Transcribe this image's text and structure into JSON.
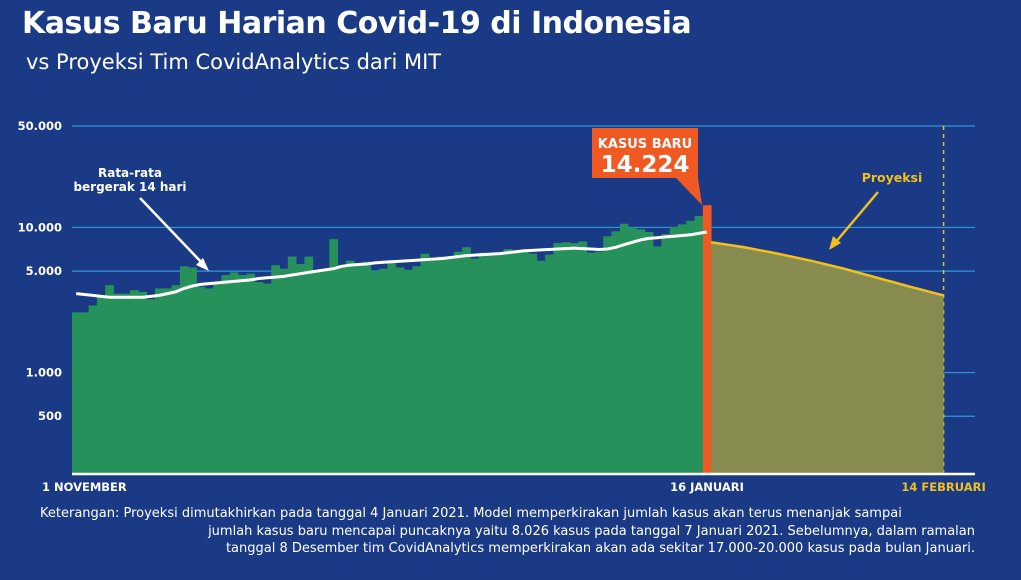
{
  "header": {
    "title": "Kasus Baru Harian Covid-19 di Indonesia",
    "subtitle": "vs Proyeksi Tim CovidAnalytics dari MIT"
  },
  "colors": {
    "background": "#1b3a86",
    "bars": "#26915a",
    "moving_average": "#ffffff",
    "highlight": "#f05a22",
    "projection_fill": "#8e8f4d",
    "projection_line": "#f2c01e",
    "gridline": "#2b9ad8"
  },
  "chart_data": {
    "type": "bar",
    "scale": "log",
    "ylim": [
      200,
      50000
    ],
    "y_ticks": [
      500,
      1000,
      5000,
      10000,
      50000
    ],
    "y_tick_labels": [
      "500",
      "1.000",
      "5.000",
      "10.000",
      "50.000"
    ],
    "x_ticks": [
      "2020-11-01",
      "2021-01-16",
      "2021-02-14"
    ],
    "x_tick_labels": [
      "1 NOVEMBER",
      "16 JANUARI",
      "14 FEBRUARI"
    ],
    "x": [
      "2020-11-01",
      "2020-11-02",
      "2020-11-03",
      "2020-11-04",
      "2020-11-05",
      "2020-11-06",
      "2020-11-07",
      "2020-11-08",
      "2020-11-09",
      "2020-11-10",
      "2020-11-11",
      "2020-11-12",
      "2020-11-13",
      "2020-11-14",
      "2020-11-15",
      "2020-11-16",
      "2020-11-17",
      "2020-11-18",
      "2020-11-19",
      "2020-11-20",
      "2020-11-21",
      "2020-11-22",
      "2020-11-23",
      "2020-11-24",
      "2020-11-25",
      "2020-11-26",
      "2020-11-27",
      "2020-11-28",
      "2020-11-29",
      "2020-11-30",
      "2020-12-01",
      "2020-12-02",
      "2020-12-03",
      "2020-12-04",
      "2020-12-05",
      "2020-12-06",
      "2020-12-07",
      "2020-12-08",
      "2020-12-09",
      "2020-12-10",
      "2020-12-11",
      "2020-12-12",
      "2020-12-13",
      "2020-12-14",
      "2020-12-15",
      "2020-12-16",
      "2020-12-17",
      "2020-12-18",
      "2020-12-19",
      "2020-12-20",
      "2020-12-21",
      "2020-12-22",
      "2020-12-23",
      "2020-12-24",
      "2020-12-25",
      "2020-12-26",
      "2020-12-27",
      "2020-12-28",
      "2020-12-29",
      "2020-12-30",
      "2020-12-31",
      "2021-01-01",
      "2021-01-02",
      "2021-01-03",
      "2021-01-04",
      "2021-01-05",
      "2021-01-06",
      "2021-01-07",
      "2021-01-08",
      "2021-01-09",
      "2021-01-10",
      "2021-01-11",
      "2021-01-12",
      "2021-01-13",
      "2021-01-14",
      "2021-01-15",
      "2021-01-16"
    ],
    "series": [
      {
        "name": "Kasus baru harian",
        "values": [
          2600,
          2600,
          2900,
          3400,
          4000,
          3500,
          3500,
          3700,
          3600,
          3200,
          3800,
          3800,
          4000,
          5400,
          5300,
          3900,
          3800,
          4200,
          4700,
          4900,
          4700,
          4800,
          4200,
          4100,
          5500,
          5200,
          6300,
          5600,
          6300,
          5100,
          5000,
          8300,
          5500,
          5900,
          5600,
          5800,
          5000,
          5200,
          5800,
          5300,
          5100,
          5400,
          6600,
          5900,
          6300,
          6100,
          6800,
          7300,
          6100,
          6700,
          6400,
          6600,
          7100,
          6800,
          6900,
          6600,
          5900,
          6500,
          7800,
          7900,
          7800,
          8000,
          6700,
          6800,
          8700,
          9400,
          10600,
          10000,
          9700,
          9300,
          7400,
          9000,
          10100,
          10500,
          11100,
          12000,
          14224
        ]
      },
      {
        "name": "Rata-rata bergerak 14 hari",
        "values": [
          3500,
          3450,
          3400,
          3350,
          3300,
          3300,
          3300,
          3300,
          3300,
          3350,
          3400,
          3500,
          3600,
          3800,
          3950,
          4050,
          4100,
          4150,
          4200,
          4250,
          4300,
          4350,
          4450,
          4500,
          4550,
          4600,
          4700,
          4800,
          4900,
          5000,
          5100,
          5200,
          5400,
          5500,
          5550,
          5600,
          5700,
          5750,
          5800,
          5850,
          5900,
          5950,
          6000,
          6050,
          6100,
          6200,
          6300,
          6400,
          6450,
          6500,
          6550,
          6600,
          6700,
          6800,
          6900,
          6950,
          7000,
          7050,
          7100,
          7150,
          7200,
          7150,
          7100,
          7050,
          7100,
          7300,
          7600,
          7900,
          8200,
          8400,
          8500,
          8600,
          8700,
          8800,
          8900,
          9100,
          9300
        ]
      },
      {
        "name": "Proyeksi",
        "x": [
          "2021-01-17",
          "2021-01-21",
          "2021-01-25",
          "2021-01-29",
          "2021-02-02",
          "2021-02-06",
          "2021-02-10",
          "2021-02-14"
        ],
        "values": [
          7900,
          7300,
          6600,
          5900,
          5200,
          4500,
          3900,
          3400
        ]
      }
    ],
    "annotations": {
      "moving_average_label": "Rata-rata bergerak 14 hari",
      "callout_title": "KASUS BARU",
      "callout_value": "14.224",
      "projection_label": "Proyeksi"
    },
    "grid": true
  },
  "footer": {
    "note_line1": "Keterangan: Proyeksi dimutakhirkan pada tanggal 4 Januari 2021. Model memperkirakan jumlah kasus akan terus menanjak sampai",
    "note_line2": "jumlah kasus baru mencapai puncaknya yaitu 8.026 kasus pada tanggal 7 Januari 2021. Sebelumnya, dalam ramalan",
    "note_line3": "tanggal 8 Desember tim CovidAnalytics memperkirakan akan ada sekitar 17.000-20.000 kasus  pada bulan Januari."
  }
}
